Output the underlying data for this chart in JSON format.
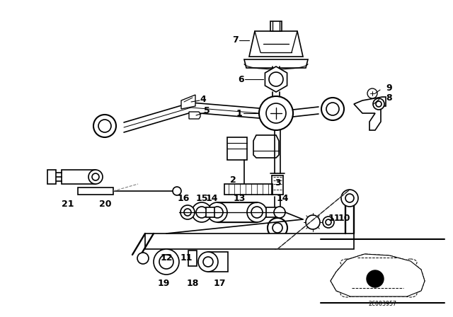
{
  "bg_color": "#ffffff",
  "line_color": "#000000",
  "fig_width": 6.4,
  "fig_height": 4.48,
  "part_number": "2C003957",
  "dpi": 100
}
